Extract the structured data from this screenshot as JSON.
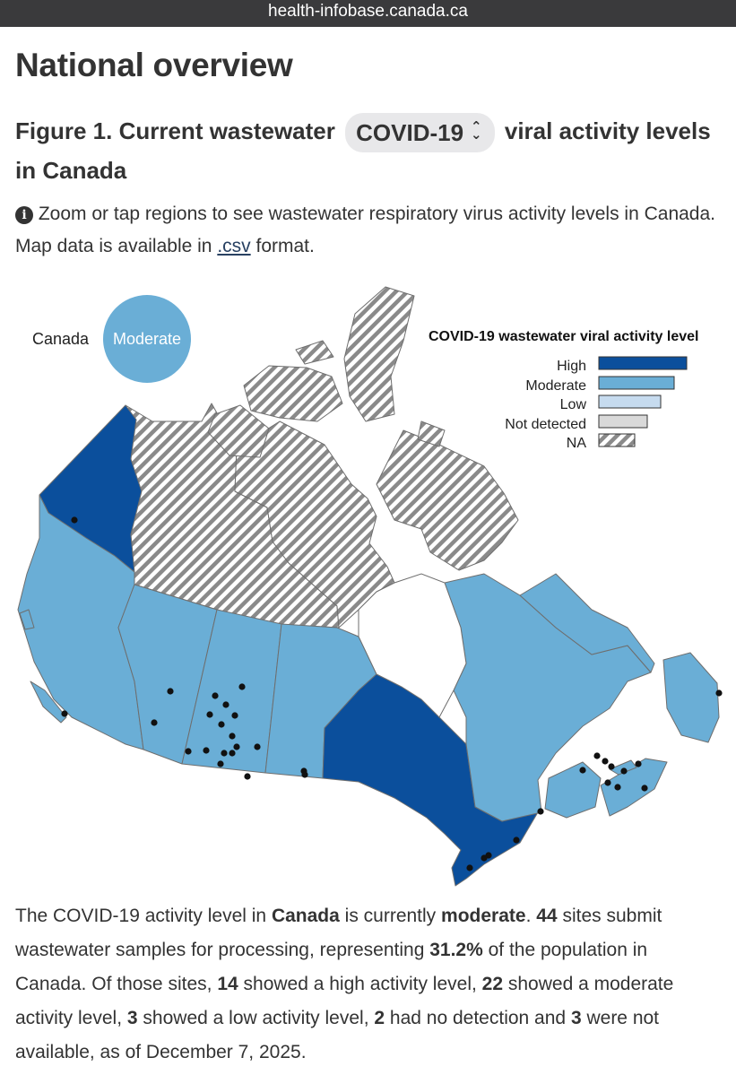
{
  "browser": {
    "url": "health-infobase.canada.ca"
  },
  "page": {
    "title": "National overview",
    "figure_title_prefix": "Figure 1. Current wastewater",
    "virus_selected": "COVID-19",
    "figure_title_suffix": "viral activity levels in Canada",
    "info_text_1": "Zoom or tap regions to see wastewater respiratory virus activity levels in Canada. Map data is available in",
    "csv_link": ".csv",
    "info_text_2": "format."
  },
  "national_badge": {
    "label": "Canada",
    "level": "Moderate"
  },
  "legend": {
    "title": "COVID-19 wastewater viral activity level",
    "items": [
      {
        "label": "High",
        "color": "#0b4f9c",
        "value": 4
      },
      {
        "label": "Moderate",
        "color": "#6aaed6",
        "value": 3
      },
      {
        "label": "Low",
        "color": "#c6dbef",
        "value": 2
      },
      {
        "label": "Not detected",
        "color": "#d9d9d9",
        "value": 1
      },
      {
        "label": "NA",
        "color": "hatched",
        "value": 0
      }
    ]
  },
  "regions": [
    {
      "name": "Yukon",
      "level": "High"
    },
    {
      "name": "Northwest Territories",
      "level": "NA"
    },
    {
      "name": "Nunavut",
      "level": "NA"
    },
    {
      "name": "British Columbia",
      "level": "Moderate"
    },
    {
      "name": "Alberta",
      "level": "Moderate"
    },
    {
      "name": "Saskatchewan",
      "level": "Moderate"
    },
    {
      "name": "Manitoba",
      "level": "Moderate"
    },
    {
      "name": "Ontario",
      "level": "High"
    },
    {
      "name": "Quebec",
      "level": "Moderate"
    },
    {
      "name": "New Brunswick",
      "level": "Moderate"
    },
    {
      "name": "Nova Scotia",
      "level": "Moderate"
    },
    {
      "name": "Prince Edward Island",
      "level": "Moderate"
    },
    {
      "name": "Newfoundland and Labrador",
      "level": "Moderate"
    }
  ],
  "summary": {
    "t1": "The COVID-19 activity level in",
    "region": "Canada",
    "t2": "is currently",
    "level": "moderate",
    "t3": ".",
    "sites": "44",
    "t4": "sites submit wastewater samples for processing, representing",
    "population_pct": "31.2%",
    "t5": "of the population in Canada. Of those sites,",
    "high_count": "14",
    "t6": "showed a high activity level,",
    "moderate_count": "22",
    "t7": "showed a moderate activity level,",
    "low_count": "3",
    "t8": "showed a low activity level,",
    "not_detected_count": "2",
    "t9": "had no detection and",
    "na_count": "3",
    "t10": "were not available, as of December 7, 2025."
  }
}
